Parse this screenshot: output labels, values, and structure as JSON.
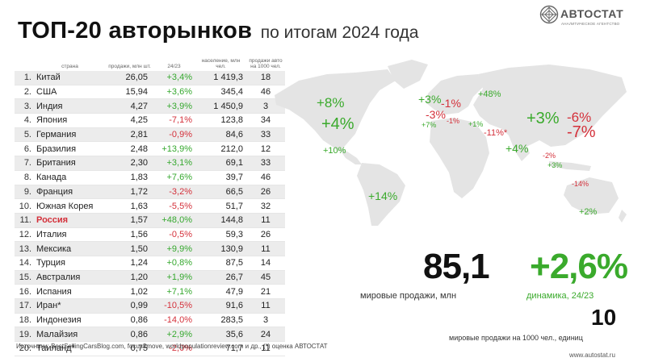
{
  "title": {
    "bold": "ТОП-20 авторынков",
    "rest": "по итогам 2024 года"
  },
  "logo": {
    "brand": "АВТОСТАТ",
    "sub": "АНАЛИТИЧЕСКОЕ АГЕНТСТВО"
  },
  "table": {
    "headers": {
      "country": "страна",
      "sales": "продажи, млн шт.",
      "change": "24/23",
      "population": "население, млн чел.",
      "per1000": "продажи авто на 1000 чел."
    },
    "rows": [
      {
        "rank": "1.",
        "country": "Китай",
        "sales": "26,05",
        "change": "+3,4%",
        "trend": "pos",
        "population": "1 419,3",
        "per1000": "18"
      },
      {
        "rank": "2.",
        "country": "США",
        "sales": "15,94",
        "change": "+3,6%",
        "trend": "pos",
        "population": "345,4",
        "per1000": "46"
      },
      {
        "rank": "3.",
        "country": "Индия",
        "sales": "4,27",
        "change": "+3,9%",
        "trend": "pos",
        "population": "1 450,9",
        "per1000": "3"
      },
      {
        "rank": "4.",
        "country": "Япония",
        "sales": "4,25",
        "change": "-7,1%",
        "trend": "neg",
        "population": "123,8",
        "per1000": "34"
      },
      {
        "rank": "5.",
        "country": "Германия",
        "sales": "2,81",
        "change": "-0,9%",
        "trend": "neg",
        "population": "84,6",
        "per1000": "33"
      },
      {
        "rank": "6.",
        "country": "Бразилия",
        "sales": "2,48",
        "change": "+13,9%",
        "trend": "pos",
        "population": "212,0",
        "per1000": "12"
      },
      {
        "rank": "7.",
        "country": "Британия",
        "sales": "2,30",
        "change": "+3,1%",
        "trend": "pos",
        "population": "69,1",
        "per1000": "33"
      },
      {
        "rank": "8.",
        "country": "Канада",
        "sales": "1,83",
        "change": "+7,6%",
        "trend": "pos",
        "population": "39,7",
        "per1000": "46"
      },
      {
        "rank": "9.",
        "country": "Франция",
        "sales": "1,72",
        "change": "-3,2%",
        "trend": "neg",
        "population": "66,5",
        "per1000": "26"
      },
      {
        "rank": "10.",
        "country": "Южная Корея",
        "sales": "1,63",
        "change": "-5,5%",
        "trend": "neg",
        "population": "51,7",
        "per1000": "32"
      },
      {
        "rank": "11.",
        "country": "Россия",
        "sales": "1,57",
        "change": "+48,0%",
        "trend": "pos",
        "population": "144,8",
        "per1000": "11",
        "highlight": true
      },
      {
        "rank": "12.",
        "country": "Италия",
        "sales": "1,56",
        "change": "-0,5%",
        "trend": "neg",
        "population": "59,3",
        "per1000": "26"
      },
      {
        "rank": "13.",
        "country": "Мексика",
        "sales": "1,50",
        "change": "+9,9%",
        "trend": "pos",
        "population": "130,9",
        "per1000": "11"
      },
      {
        "rank": "14.",
        "country": "Турция",
        "sales": "1,24",
        "change": "+0,8%",
        "trend": "pos",
        "population": "87,5",
        "per1000": "14"
      },
      {
        "rank": "15.",
        "country": "Австралия",
        "sales": "1,20",
        "change": "+1,9%",
        "trend": "pos",
        "population": "26,7",
        "per1000": "45"
      },
      {
        "rank": "16.",
        "country": "Испания",
        "sales": "1,02",
        "change": "+7,1%",
        "trend": "pos",
        "population": "47,9",
        "per1000": "21"
      },
      {
        "rank": "17.",
        "country": "Иран*",
        "sales": "0,99",
        "change": "-10,5%",
        "trend": "neg",
        "population": "91,6",
        "per1000": "11"
      },
      {
        "rank": "18.",
        "country": "Индонезия",
        "sales": "0,86",
        "change": "-14,0%",
        "trend": "neg",
        "population": "283,5",
        "per1000": "3"
      },
      {
        "rank": "19.",
        "country": "Малайзия",
        "sales": "0,86",
        "change": "+2,9%",
        "trend": "pos",
        "population": "35,6",
        "per1000": "24"
      },
      {
        "rank": "20.",
        "country": "Таиланд*",
        "sales": "0,75",
        "change": "-2,0%",
        "trend": "neg",
        "population": "71,7",
        "per1000": "11"
      }
    ]
  },
  "map_labels": [
    {
      "text": "+8%",
      "trend": "pos",
      "size": "s1"
    },
    {
      "text": "+4%",
      "trend": "pos",
      "size": "s2"
    },
    {
      "text": "+10%",
      "trend": "pos",
      "size": "s4"
    },
    {
      "text": "+14%",
      "trend": "pos",
      "size": "s3"
    },
    {
      "text": "+3%",
      "trend": "pos",
      "size": "s3"
    },
    {
      "text": "-1%",
      "trend": "neg",
      "size": "s3"
    },
    {
      "text": "-3%",
      "trend": "neg",
      "size": "s3"
    },
    {
      "text": "+7%",
      "trend": "pos",
      "size": "s5"
    },
    {
      "text": "-1%",
      "trend": "neg",
      "size": "s5"
    },
    {
      "text": "+1%",
      "trend": "pos",
      "size": "s5"
    },
    {
      "text": "+48%",
      "trend": "pos",
      "size": "s4"
    },
    {
      "text": "-11%*",
      "trend": "neg",
      "size": "s4"
    },
    {
      "text": "+3%",
      "trend": "pos",
      "size": "s2"
    },
    {
      "text": "-6%",
      "trend": "neg",
      "size": "s1"
    },
    {
      "text": "-7%",
      "trend": "neg",
      "size": "s2"
    },
    {
      "text": "+4%",
      "trend": "pos",
      "size": "s3"
    },
    {
      "text": "-2%",
      "trend": "neg",
      "size": "s5"
    },
    {
      "text": "+3%",
      "trend": "pos",
      "size": "s5"
    },
    {
      "text": "-14%",
      "trend": "neg",
      "size": "s5"
    },
    {
      "text": "+2%",
      "trend": "pos",
      "size": "s4"
    }
  ],
  "kpi": {
    "world_sales_value": "85,1",
    "world_sales_caption": "мировые продажи, млн",
    "dynamics_value": "+2,6%",
    "dynamics_caption": "динамика, 24/23",
    "per1000_value": "10",
    "per1000_caption": "мировые продажи на 1000 чел., единиц"
  },
  "source": "Источники: BestSellingCarsBlog.com, focus2move, worldpopulationreview.com и др., (*) оценка АВТОСТАТ",
  "site": "www.autostat.ru",
  "colors": {
    "positive": "#3aaa2c",
    "negative": "#d4303a",
    "map": "#e4e4e4"
  }
}
